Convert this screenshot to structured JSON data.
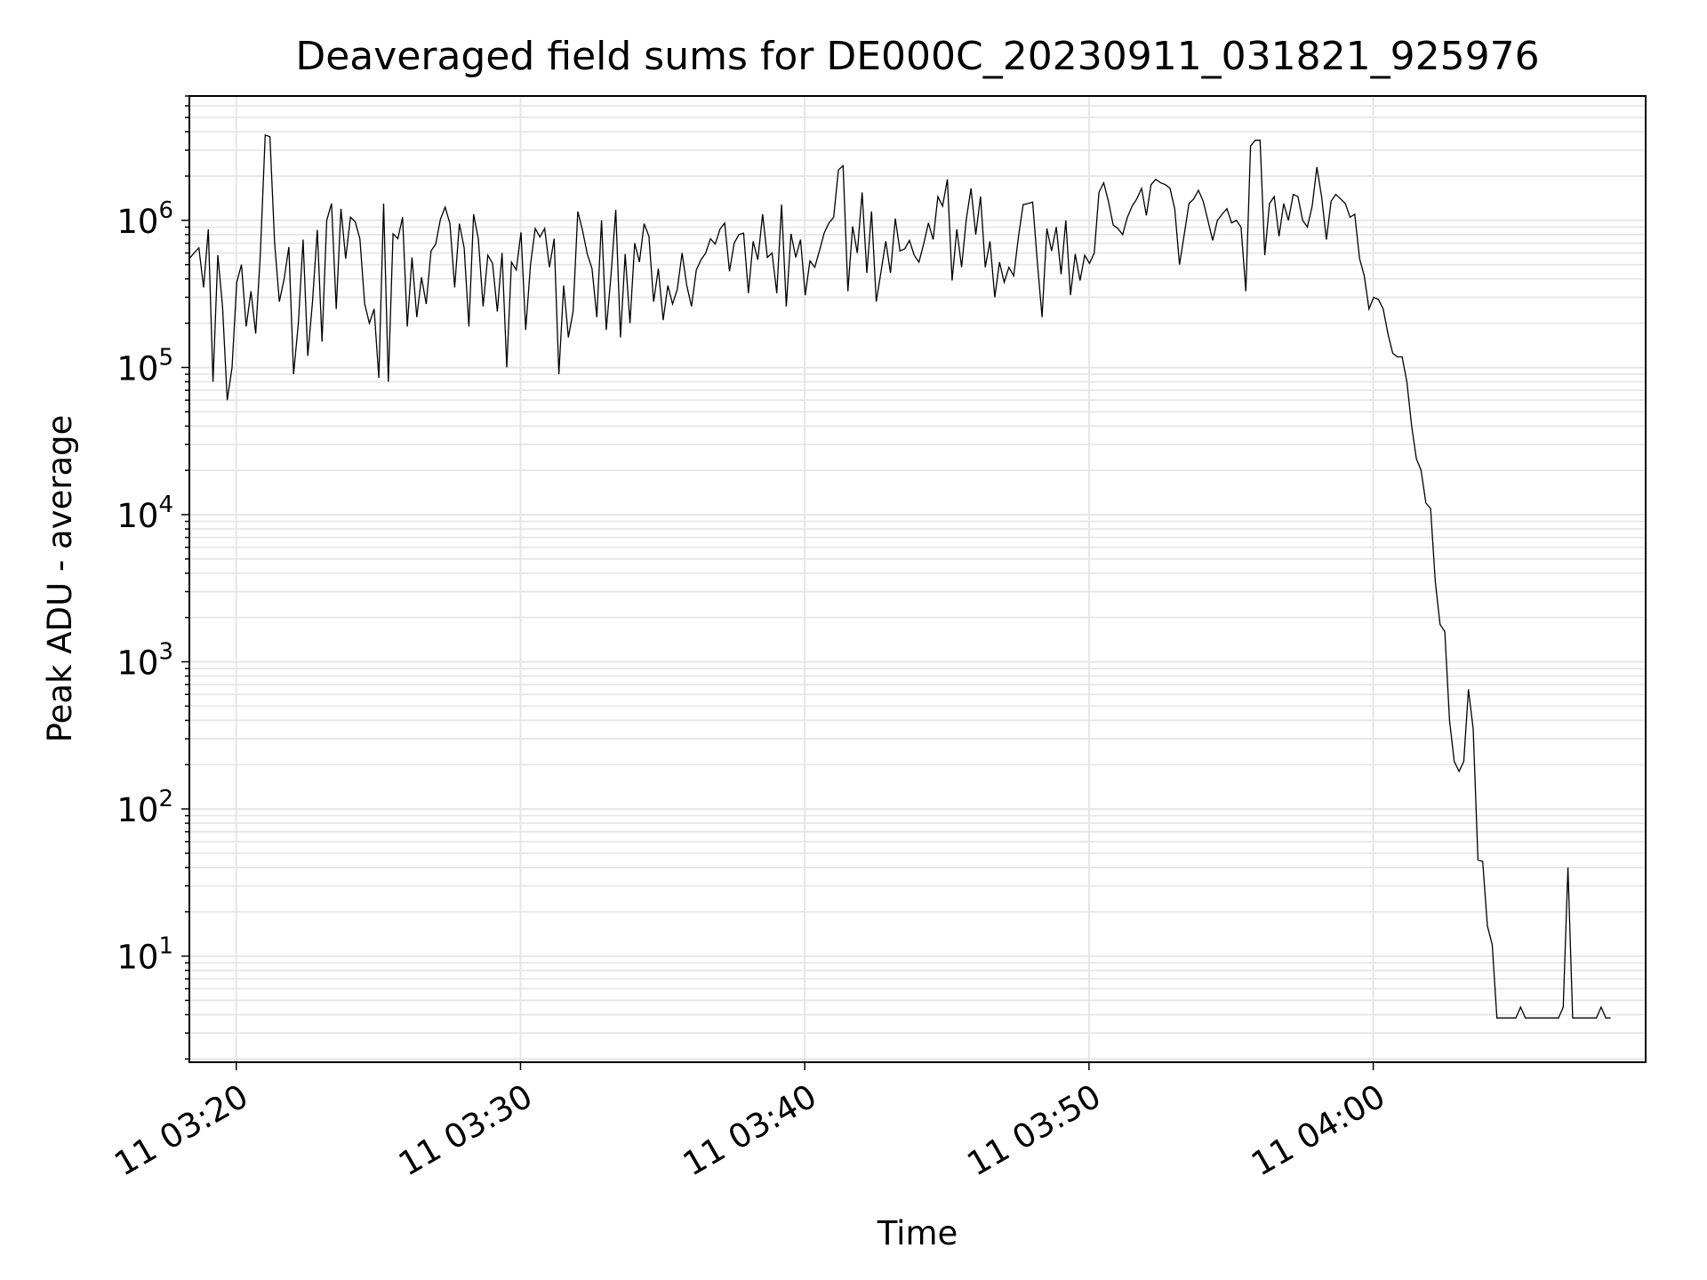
{
  "chart_data": {
    "type": "line",
    "title": "Deaveraged field sums for DE000C_20230911_031821_925976",
    "xlabel": "Time",
    "ylabel": "Peak ADU - average",
    "yscale": "log",
    "grid": "on (major and minor)",
    "line_color": "#000000",
    "grid_color": "#e6e6e6",
    "x_ticks": [
      {
        "t": "2023-09-11 03:20",
        "label": "11 03:20"
      },
      {
        "t": "2023-09-11 03:30",
        "label": "11 03:30"
      },
      {
        "t": "2023-09-11 03:40",
        "label": "11 03:40"
      },
      {
        "t": "2023-09-11 03:50",
        "label": "11 03:50"
      },
      {
        "t": "2023-09-11 04:00",
        "label": "11 04:00"
      }
    ],
    "y_ticks": [
      {
        "value": 10,
        "base": "10",
        "exp": "1"
      },
      {
        "value": 100,
        "base": "10",
        "exp": "2"
      },
      {
        "value": 1000,
        "base": "10",
        "exp": "3"
      },
      {
        "value": 10000,
        "base": "10",
        "exp": "4"
      },
      {
        "value": 100000,
        "base": "10",
        "exp": "5"
      },
      {
        "value": 1000000,
        "base": "10",
        "exp": "6"
      }
    ],
    "xlim": [
      "2023-09-11 03:18:21",
      "2023-09-11 04:09:35"
    ],
    "ylim": [
      1.9,
      7000000
    ],
    "series": [
      {
        "t_start": "2023-09-11 03:18:21",
        "t_step_seconds": 10,
        "values": [
          550000,
          600000,
          650000,
          350000,
          870000,
          80000,
          580000,
          260000,
          60000,
          100000,
          380000,
          500000,
          190000,
          330000,
          170000,
          600000,
          3800000,
          3700000,
          700000,
          280000,
          400000,
          660000,
          90000,
          200000,
          740000,
          120000,
          280000,
          860000,
          150000,
          1000000,
          1300000,
          250000,
          1200000,
          550000,
          1050000,
          980000,
          750000,
          270000,
          200000,
          250000,
          85000,
          1300000,
          80000,
          810000,
          750000,
          1050000,
          190000,
          560000,
          220000,
          410000,
          270000,
          620000,
          690000,
          1020000,
          1230000,
          950000,
          350000,
          950000,
          650000,
          190000,
          1100000,
          750000,
          260000,
          580000,
          510000,
          240000,
          600000,
          100000,
          520000,
          460000,
          830000,
          180000,
          500000,
          880000,
          770000,
          880000,
          480000,
          750000,
          90000,
          360000,
          160000,
          240000,
          1150000,
          850000,
          590000,
          470000,
          220000,
          1000000,
          180000,
          420000,
          1180000,
          160000,
          590000,
          200000,
          700000,
          520000,
          950000,
          780000,
          280000,
          470000,
          210000,
          360000,
          270000,
          340000,
          600000,
          360000,
          260000,
          460000,
          540000,
          600000,
          750000,
          690000,
          870000,
          960000,
          450000,
          700000,
          800000,
          820000,
          320000,
          720000,
          540000,
          1100000,
          560000,
          600000,
          320000,
          1280000,
          260000,
          810000,
          560000,
          740000,
          310000,
          530000,
          480000,
          620000,
          820000,
          960000,
          1050000,
          2200000,
          2350000,
          330000,
          910000,
          600000,
          1550000,
          440000,
          1150000,
          280000,
          450000,
          720000,
          440000,
          1030000,
          620000,
          640000,
          730000,
          580000,
          520000,
          690000,
          960000,
          740000,
          1450000,
          1250000,
          1900000,
          390000,
          870000,
          480000,
          1020000,
          1650000,
          800000,
          1450000,
          480000,
          720000,
          300000,
          520000,
          380000,
          480000,
          420000,
          770000,
          1280000,
          1300000,
          1330000,
          520000,
          220000,
          880000,
          620000,
          900000,
          430000,
          1000000,
          310000,
          590000,
          390000,
          580000,
          510000,
          600000,
          1550000,
          1800000,
          1350000,
          930000,
          880000,
          800000,
          1050000,
          1250000,
          1400000,
          1650000,
          1080000,
          1750000,
          1900000,
          1800000,
          1750000,
          1650000,
          1200000,
          500000,
          800000,
          1300000,
          1400000,
          1600000,
          1350000,
          1000000,
          730000,
          1000000,
          1100000,
          1200000,
          960000,
          1000000,
          900000,
          330000,
          3200000,
          3500000,
          3500000,
          580000,
          1300000,
          1450000,
          780000,
          1300000,
          1000000,
          1500000,
          1450000,
          1000000,
          900000,
          1250000,
          2300000,
          1450000,
          740000,
          1350000,
          1500000,
          1400000,
          1300000,
          1050000,
          1100000,
          550000,
          420000,
          250000,
          300000,
          290000,
          250000,
          170000,
          125000,
          118000,
          118000,
          80000,
          40000,
          24000,
          20000,
          12000,
          11000,
          3500,
          1800,
          1600,
          400,
          210,
          180,
          210,
          650,
          350,
          45,
          44,
          16,
          12,
          3.8,
          3.8,
          3.8,
          3.8,
          3.8,
          4.5,
          3.8,
          3.8,
          3.8,
          3.8,
          3.8,
          3.8,
          3.8,
          3.8,
          4.5,
          40,
          3.8,
          3.8,
          3.8,
          3.8,
          3.8,
          3.8,
          4.5,
          3.8,
          3.8
        ]
      }
    ]
  }
}
